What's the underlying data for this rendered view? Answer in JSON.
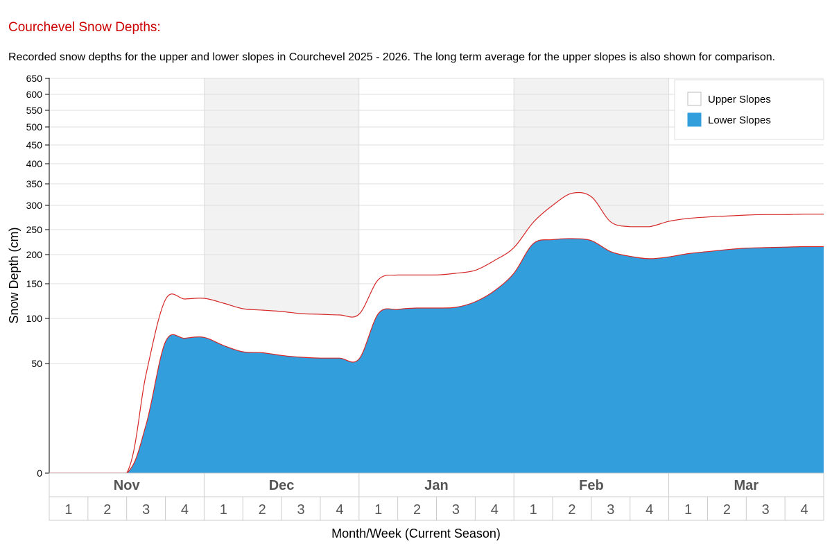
{
  "title": "Courchevel Snow Depths:",
  "subtitle": "Recorded snow depths for the upper and lower slopes in Courchevel 2025 - 2026. The long term average for the upper slopes is also shown for comparison.",
  "chart_data": {
    "type": "area",
    "xlabel": "Month/Week (Current Season)",
    "ylabel": "Snow Depth (cm)",
    "ylim": [
      0,
      650
    ],
    "y_ticks": [
      0,
      50,
      100,
      150,
      200,
      250,
      300,
      350,
      400,
      450,
      500,
      550,
      600,
      650
    ],
    "months": [
      "Nov",
      "Dec",
      "Jan",
      "Feb",
      "Mar"
    ],
    "weeks": [
      "1",
      "2",
      "3",
      "4"
    ],
    "grid": true,
    "legend_position": "top-right",
    "colors": {
      "upper": "#ffffff",
      "lower": "#339edc",
      "outline": "#d62728",
      "shaded_month": "#f2f2f2",
      "gridline": "#dddddd"
    },
    "series": [
      {
        "name": "Upper Slopes",
        "x": [
          0,
          1,
          2,
          2.5,
          3,
          3.5,
          4,
          4.5,
          5,
          5.5,
          6,
          6.5,
          7,
          7.5,
          8,
          8.5,
          9,
          9.5,
          10,
          10.5,
          11,
          11.5,
          12,
          12.5,
          13,
          13.5,
          14,
          14.5,
          15,
          15.5,
          16,
          16.5,
          17,
          17.5,
          18,
          18.5,
          19,
          19.5,
          20
        ],
        "values": [
          0,
          0,
          0,
          45,
          127,
          128,
          129,
          122,
          114,
          112,
          110,
          107,
          106,
          105,
          106,
          157,
          165,
          165,
          165,
          168,
          173,
          190,
          214,
          265,
          300,
          328,
          320,
          266,
          256,
          256,
          267,
          273,
          276,
          278,
          280,
          281,
          281,
          282,
          282
        ]
      },
      {
        "name": "Lower Slopes",
        "x": [
          0,
          1,
          2,
          2.5,
          3,
          3.5,
          4,
          4.5,
          5,
          5.5,
          6,
          6.5,
          7,
          7.5,
          8,
          8.5,
          9,
          9.5,
          10,
          10.5,
          11,
          11.5,
          12,
          12.5,
          13,
          13.5,
          14,
          14.5,
          15,
          15.5,
          16,
          16.5,
          17,
          17.5,
          18,
          18.5,
          19,
          19.5,
          20
        ],
        "values": [
          0,
          0,
          0,
          22,
          74,
          78,
          79,
          70,
          63,
          62,
          59,
          57,
          56,
          56,
          55,
          107,
          113,
          115,
          115,
          116,
          124,
          140,
          168,
          222,
          230,
          232,
          228,
          206,
          197,
          193,
          196,
          202,
          206,
          210,
          213,
          214,
          215,
          216,
          216
        ]
      }
    ]
  }
}
